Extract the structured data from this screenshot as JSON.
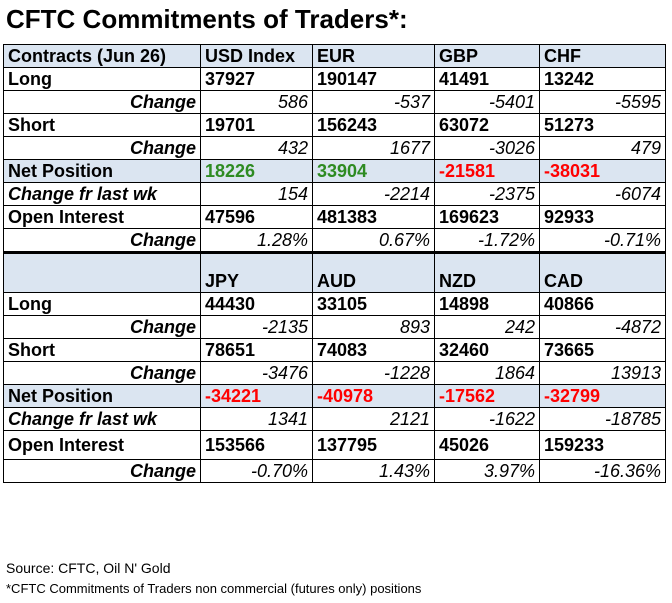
{
  "title": "CFTC Commitments of Traders*:",
  "table1": {
    "header": [
      "Contracts (Jun 26)",
      "USD Index",
      "EUR",
      "GBP",
      "CHF"
    ],
    "long": [
      "Long",
      "37927",
      "190147",
      "41491",
      "13242"
    ],
    "long_change": [
      "Change",
      "586",
      "-537",
      "-5401",
      "-5595"
    ],
    "short": [
      "Short",
      "19701",
      "156243",
      "63072",
      "51273"
    ],
    "short_change": [
      "Change",
      "432",
      "1677",
      "-3026",
      "479"
    ],
    "net": [
      "Net Position",
      "18226",
      "33904",
      "-21581",
      "-38031"
    ],
    "net_change": [
      "Change fr last wk",
      "154",
      "-2214",
      "-2375",
      "-6074"
    ],
    "oi": [
      "Open Interest",
      "47596",
      "481383",
      "169623",
      "92933"
    ],
    "oi_change": [
      "Change",
      "1.28%",
      "0.67%",
      "-1.72%",
      "-0.71%"
    ]
  },
  "table2": {
    "header": [
      "",
      "JPY",
      "AUD",
      "NZD",
      "CAD"
    ],
    "long": [
      "Long",
      "44430",
      "33105",
      "14898",
      "40866"
    ],
    "long_change": [
      "Change",
      "-2135",
      "893",
      "242",
      "-4872"
    ],
    "short": [
      "Short",
      "78651",
      "74083",
      "32460",
      "73665"
    ],
    "short_change": [
      "Change",
      "-3476",
      "-1228",
      "1864",
      "13913"
    ],
    "net": [
      "Net Position",
      "-34221",
      "-40978",
      "-17562",
      "-32799"
    ],
    "net_change": [
      "Change fr last wk",
      "1341",
      "2121",
      "-1622",
      "-18785"
    ],
    "oi": [
      "Open Interest",
      "153566",
      "137795",
      "45026",
      "159233"
    ],
    "oi_change": [
      "Change",
      "-0.70%",
      "1.43%",
      "3.97%",
      "-16.36%"
    ]
  },
  "colors": {
    "positive_net": "#2e8b22",
    "negative_net": "#ff0000",
    "row_highlight": "#dbe5f1"
  },
  "source": "Source: CFTC, Oil N' Gold",
  "footnote": "*CFTC Commitments of Traders non commercial (futures only) positions"
}
